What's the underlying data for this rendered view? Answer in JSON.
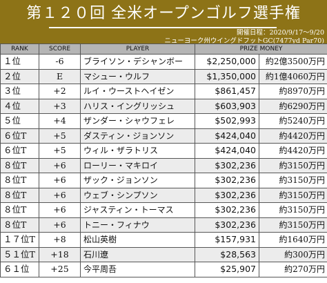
{
  "header": {
    "title": "第１２０回 全米オープンゴルフ選手権",
    "dates_label": "開催日程：2020/9/17～9/20",
    "course_label": "ニューヨーク州ウイングドフットGC(7477yd Par70)"
  },
  "table": {
    "columns": {
      "rank": "RANK",
      "score": "SCORE",
      "player": "PLAYER",
      "prize": "PRIZE MONEY"
    },
    "rows": [
      {
        "rank": "１位",
        "score": "-6",
        "player": "ブライソン・デシャンボー",
        "usd": "$2,250,000",
        "jpy": "約2億3500万円"
      },
      {
        "rank": "２位",
        "score": "E",
        "player": "マシュー・ウルフ",
        "usd": "$1,350,000",
        "jpy": "約1億4060万円"
      },
      {
        "rank": "３位",
        "score": "+2",
        "player": "ルイ・ウーストヘイゼン",
        "usd": "$861,457",
        "jpy": "約8970万円"
      },
      {
        "rank": "４位",
        "score": "+3",
        "player": "ハリス・イングリッシュ",
        "usd": "$603,903",
        "jpy": "約6290万円"
      },
      {
        "rank": "５位",
        "score": "+4",
        "player": "ザンダー・シャウフェレ",
        "usd": "$502,993",
        "jpy": "約5240万円"
      },
      {
        "rank": "６位T",
        "score": "+5",
        "player": "ダスティン・ジョンソン",
        "usd": "$424,040",
        "jpy": "約4420万円"
      },
      {
        "rank": "６位T",
        "score": "+5",
        "player": "ウィル・ザラトリス",
        "usd": "$424,040",
        "jpy": "約4420万円"
      },
      {
        "rank": "８位T",
        "score": "+6",
        "player": "ローリー・マキロイ",
        "usd": "$302,236",
        "jpy": "約3150万円"
      },
      {
        "rank": "８位T",
        "score": "+6",
        "player": "ザック・ジョンソン",
        "usd": "$302,236",
        "jpy": "約3150万円"
      },
      {
        "rank": "８位T",
        "score": "+6",
        "player": "ウェブ・シンプソン",
        "usd": "$302,236",
        "jpy": "約3150万円"
      },
      {
        "rank": "８位T",
        "score": "+6",
        "player": "ジャスティン・トーマス",
        "usd": "$302,236",
        "jpy": "約3150万円"
      },
      {
        "rank": "８位T",
        "score": "+6",
        "player": "トニー・フィナウ",
        "usd": "$302,236",
        "jpy": "約3150万円"
      },
      {
        "rank": "１７位T",
        "score": "+8",
        "player": "松山英樹",
        "usd": "$157,931",
        "jpy": "約1640万円"
      },
      {
        "rank": "５１位T",
        "score": "+18",
        "player": "石川遼",
        "usd": "$28,563",
        "jpy": "約300万円"
      },
      {
        "rank": "６１位",
        "score": "+25",
        "player": "今平周吾",
        "usd": "$25,907",
        "jpy": "約270万円"
      }
    ]
  },
  "colors": {
    "header_bg": "#8d7317",
    "column_header_bg": "#b5b5b5",
    "stripe_bg": "#ececec"
  }
}
